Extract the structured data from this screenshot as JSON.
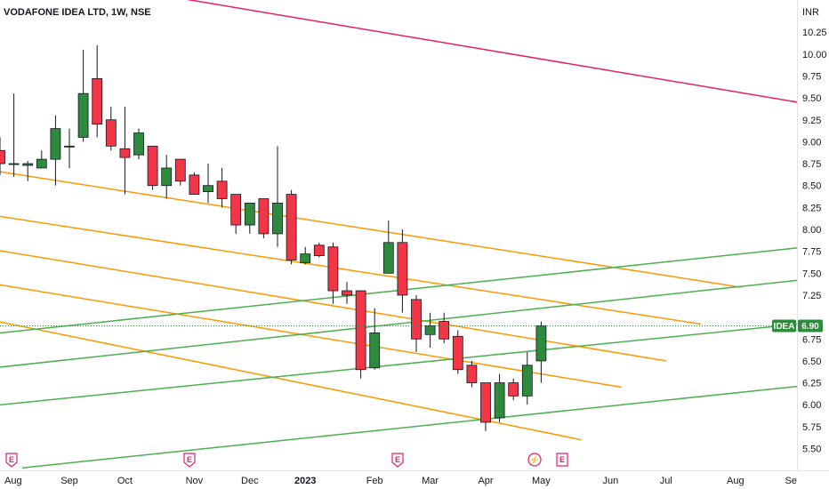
{
  "header": {
    "title": "VODAFONE IDEA LTD, 1W, NSE"
  },
  "price_axis": {
    "currency": "INR"
  },
  "last_price": {
    "symbol": "IDEA",
    "value": "6.90"
  },
  "events": [
    {
      "label": "E",
      "kind": "earnings",
      "date": "Aug"
    },
    {
      "label": "E",
      "kind": "earnings",
      "date": "Nov"
    },
    {
      "label": "E",
      "kind": "earnings",
      "date": "Feb"
    },
    {
      "label": "⚡",
      "kind": "split",
      "date": "May"
    },
    {
      "label": "E",
      "kind": "earnings",
      "date": "May"
    }
  ],
  "colors": {
    "up": "#2e8b3d",
    "down": "#f23645",
    "orange_line": "#ff9800",
    "green_line": "#4caf50",
    "red_line": "#e91e63",
    "label_bg": "#2e8b3d"
  },
  "chart_data": {
    "type": "candlestick",
    "title": "VODAFONE IDEA LTD, 1W, NSE",
    "ylabel": "INR",
    "ylim": [
      5.3,
      10.55
    ],
    "y_ticks": [
      "5.50",
      "5.75",
      "6.00",
      "6.25",
      "6.50",
      "6.75",
      "7.00",
      "7.25",
      "7.50",
      "7.75",
      "8.00",
      "8.25",
      "8.50",
      "8.75",
      "9.00",
      "9.25",
      "9.50",
      "9.75",
      "10.00",
      "10.25"
    ],
    "x_labels": [
      "Aug",
      "Sep",
      "Oct",
      "Nov",
      "Dec",
      "2023",
      "Feb",
      "Mar",
      "Apr",
      "May",
      "Jun",
      "Jul",
      "Aug",
      "Se"
    ],
    "x_label_weeks": [
      0,
      5,
      9,
      14,
      18,
      22,
      27,
      31,
      35,
      39,
      44,
      48,
      53,
      57
    ],
    "last_price": 6.9,
    "candles": [
      {
        "week": 0,
        "open": 8.9,
        "high": 9.05,
        "low": 8.62,
        "close": 8.75
      },
      {
        "week": 1,
        "open": 8.75,
        "high": 9.55,
        "low": 8.6,
        "close": 8.75
      },
      {
        "week": 2,
        "open": 8.73,
        "high": 8.78,
        "low": 8.55,
        "close": 8.75
      },
      {
        "week": 3,
        "open": 8.7,
        "high": 8.9,
        "low": 8.7,
        "close": 8.8
      },
      {
        "week": 4,
        "open": 8.8,
        "high": 9.3,
        "low": 8.5,
        "close": 9.15
      },
      {
        "week": 5,
        "open": 8.95,
        "high": 9.15,
        "low": 8.7,
        "close": 8.95
      },
      {
        "week": 6,
        "open": 9.05,
        "high": 10.05,
        "low": 9.0,
        "close": 9.55
      },
      {
        "week": 7,
        "open": 9.72,
        "high": 10.1,
        "low": 9.05,
        "close": 9.2
      },
      {
        "week": 8,
        "open": 9.25,
        "high": 9.4,
        "low": 8.9,
        "close": 8.95
      },
      {
        "week": 9,
        "open": 8.92,
        "high": 9.4,
        "low": 8.4,
        "close": 8.82
      },
      {
        "week": 10,
        "open": 8.85,
        "high": 9.15,
        "low": 8.8,
        "close": 9.1
      },
      {
        "week": 11,
        "open": 8.95,
        "high": 8.95,
        "low": 8.45,
        "close": 8.5
      },
      {
        "week": 12,
        "open": 8.5,
        "high": 8.85,
        "low": 8.35,
        "close": 8.7
      },
      {
        "week": 13,
        "open": 8.8,
        "high": 8.8,
        "low": 8.5,
        "close": 8.55
      },
      {
        "week": 14,
        "open": 8.62,
        "high": 8.65,
        "low": 8.4,
        "close": 8.4
      },
      {
        "week": 15,
        "open": 8.43,
        "high": 8.75,
        "low": 8.3,
        "close": 8.5
      },
      {
        "week": 16,
        "open": 8.55,
        "high": 8.7,
        "low": 8.25,
        "close": 8.35
      },
      {
        "week": 17,
        "open": 8.4,
        "high": 8.4,
        "low": 7.95,
        "close": 8.05
      },
      {
        "week": 18,
        "open": 8.05,
        "high": 8.3,
        "low": 7.95,
        "close": 8.3
      },
      {
        "week": 19,
        "open": 8.35,
        "high": 8.35,
        "low": 7.9,
        "close": 7.95
      },
      {
        "week": 20,
        "open": 7.95,
        "high": 8.95,
        "low": 7.8,
        "close": 8.3
      },
      {
        "week": 21,
        "open": 8.4,
        "high": 8.45,
        "low": 7.6,
        "close": 7.65
      },
      {
        "week": 22,
        "open": 7.62,
        "high": 7.8,
        "low": 7.6,
        "close": 7.72
      },
      {
        "week": 23,
        "open": 7.82,
        "high": 7.85,
        "low": 7.68,
        "close": 7.7
      },
      {
        "week": 24,
        "open": 7.8,
        "high": 7.85,
        "low": 7.15,
        "close": 7.3
      },
      {
        "week": 25,
        "open": 7.3,
        "high": 7.4,
        "low": 7.15,
        "close": 7.25
      },
      {
        "week": 26,
        "open": 7.3,
        "high": 7.3,
        "low": 6.3,
        "close": 6.4
      },
      {
        "week": 27,
        "open": 6.42,
        "high": 7.1,
        "low": 6.4,
        "close": 6.82
      },
      {
        "week": 28,
        "open": 7.5,
        "high": 8.1,
        "low": 7.5,
        "close": 7.85
      },
      {
        "week": 29,
        "open": 7.85,
        "high": 8.0,
        "low": 7.05,
        "close": 7.25
      },
      {
        "week": 30,
        "open": 7.2,
        "high": 7.25,
        "low": 6.6,
        "close": 6.75
      },
      {
        "week": 31,
        "open": 6.8,
        "high": 7.05,
        "low": 6.65,
        "close": 6.9
      },
      {
        "week": 32,
        "open": 6.95,
        "high": 7.05,
        "low": 6.7,
        "close": 6.75
      },
      {
        "week": 33,
        "open": 6.78,
        "high": 6.85,
        "low": 6.35,
        "close": 6.4
      },
      {
        "week": 34,
        "open": 6.45,
        "high": 6.5,
        "low": 6.2,
        "close": 6.25
      },
      {
        "week": 35,
        "open": 6.25,
        "high": 6.25,
        "low": 5.7,
        "close": 5.8
      },
      {
        "week": 36,
        "open": 5.85,
        "high": 6.35,
        "low": 5.8,
        "close": 6.25
      },
      {
        "week": 37,
        "open": 6.25,
        "high": 6.3,
        "low": 6.05,
        "close": 6.1
      },
      {
        "week": 38,
        "open": 6.1,
        "high": 6.6,
        "low": 6.0,
        "close": 6.45
      },
      {
        "week": 39,
        "open": 6.5,
        "high": 6.95,
        "low": 6.25,
        "close": 6.9
      }
    ],
    "trend_lines": [
      {
        "color": "red",
        "start": {
          "week": 10.6,
          "price": 10.7
        },
        "end": {
          "week": 57.5,
          "price": 9.45
        }
      },
      {
        "color": "orange",
        "start": {
          "week": -0.5,
          "price": 8.67
        },
        "end": {
          "week": 53.4,
          "price": 7.34
        }
      },
      {
        "color": "orange",
        "start": {
          "week": -0.5,
          "price": 8.16
        },
        "end": {
          "week": 50.5,
          "price": 6.92
        }
      },
      {
        "color": "orange",
        "start": {
          "week": -0.5,
          "price": 7.77
        },
        "end": {
          "week": 48.0,
          "price": 6.5
        }
      },
      {
        "color": "orange",
        "start": {
          "week": -0.5,
          "price": 7.38
        },
        "end": {
          "week": 44.8,
          "price": 6.2
        }
      },
      {
        "color": "orange",
        "start": {
          "week": -0.5,
          "price": 6.96
        },
        "end": {
          "week": 41.9,
          "price": 5.6
        }
      },
      {
        "color": "green",
        "start": {
          "week": -0.5,
          "price": 6.81
        },
        "end": {
          "week": 57.5,
          "price": 7.79
        }
      },
      {
        "color": "green",
        "start": {
          "week": -0.5,
          "price": 6.42
        },
        "end": {
          "week": 57.5,
          "price": 7.42
        }
      },
      {
        "color": "green",
        "start": {
          "week": -0.5,
          "price": 5.99
        },
        "end": {
          "week": 57.5,
          "price": 6.92
        }
      },
      {
        "color": "green",
        "start": {
          "week": 1.6,
          "price": 5.28
        },
        "end": {
          "week": 57.5,
          "price": 6.21
        }
      }
    ]
  }
}
